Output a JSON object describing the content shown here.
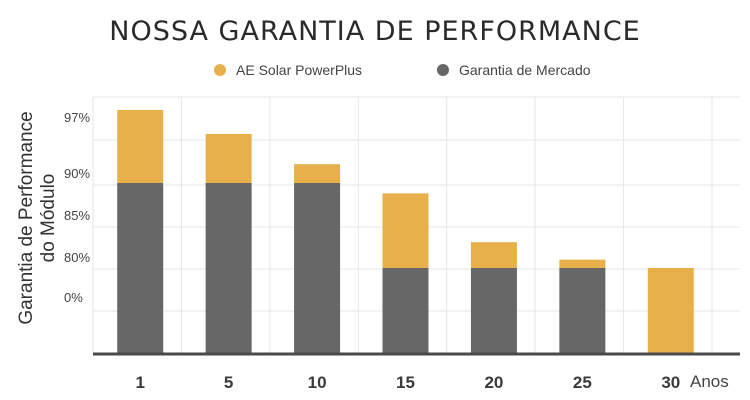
{
  "title": "NOSSA GARANTIA DE PERFORMANCE",
  "legend": [
    {
      "label": "AE Solar PowerPlus",
      "color": "#e8b04a"
    },
    {
      "label": "Garantia de Mercado",
      "color": "#666766"
    }
  ],
  "chart_data": {
    "type": "bar",
    "stacked": true,
    "title": "NOSSA GARANTIA DE PERFORMANCE",
    "xlabel": "Anos",
    "ylabel": "Garantia de Performance do Módulo",
    "categories": [
      "1",
      "5",
      "10",
      "15",
      "20",
      "25",
      "30"
    ],
    "yticks": [
      "97%",
      "90%",
      "85%",
      "80%",
      "0%"
    ],
    "series": [
      {
        "name": "Garantia de Mercado",
        "color": "#666766",
        "values": [
          90,
          90,
          90,
          80,
          80,
          80,
          0
        ]
      },
      {
        "name": "AE Solar PowerPlus",
        "color": "#e8b04a",
        "values": [
          7.5,
          4.7,
          1.8,
          9.3,
          6.0,
          3.8,
          80
        ]
      }
    ],
    "grid": true
  }
}
